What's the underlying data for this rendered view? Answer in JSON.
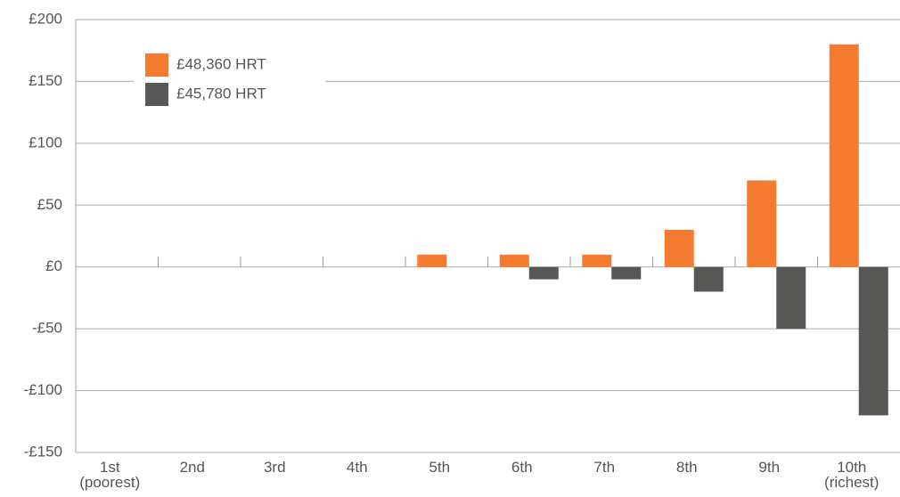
{
  "chart_data": {
    "type": "bar",
    "categories": [
      "1st (poorest)",
      "2nd",
      "3rd",
      "4th",
      "5th",
      "6th",
      "7th",
      "8th",
      "9th",
      "10th (richest)"
    ],
    "series": [
      {
        "name": "£48,360 HRT",
        "color": "#f47b30",
        "values": [
          0,
          0,
          0,
          0,
          10,
          10,
          10,
          30,
          70,
          180
        ]
      },
      {
        "name": "£45,780 HRT",
        "color": "#575756",
        "values": [
          0,
          0,
          0,
          0,
          0,
          -10,
          -10,
          -20,
          -50,
          -120
        ]
      }
    ],
    "ylim": [
      -150,
      200
    ],
    "yticks": [
      {
        "value": -150,
        "label": "-£150"
      },
      {
        "value": -100,
        "label": "-£100"
      },
      {
        "value": -50,
        "label": "-£50"
      },
      {
        "value": 0,
        "label": "£0"
      },
      {
        "value": 50,
        "label": "£50"
      },
      {
        "value": 100,
        "label": "£100"
      },
      {
        "value": 150,
        "label": "£150"
      },
      {
        "value": 200,
        "label": "£200"
      }
    ],
    "grid": true,
    "legend": "upper left"
  }
}
